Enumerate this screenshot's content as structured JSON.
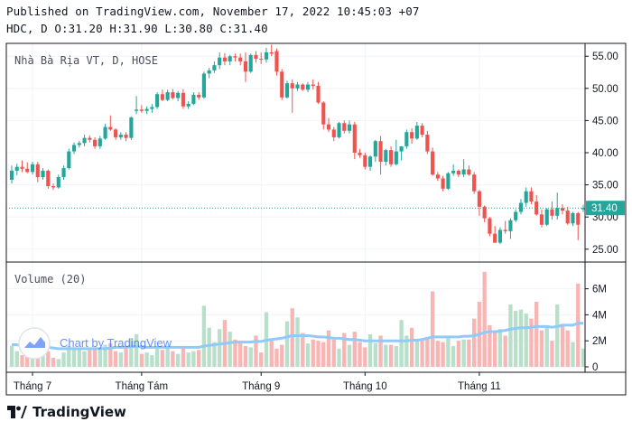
{
  "header": {
    "published": "Published on TradingView.com, November 17, 2022 10:45:03 +07",
    "ohlc": "HDC, D O:31.20 H:31.90 L:30.80 C:31.40"
  },
  "watermark": {
    "text": "Chart by TradingView"
  },
  "brand": {
    "text": "TradingView"
  },
  "colors": {
    "up": "#26a69a",
    "down": "#ef5350",
    "vol_up": "#b7dfc9",
    "vol_down": "#f7b5b4",
    "ma": "#90caf9",
    "last": "#26a69a"
  },
  "chart_data": [
    {
      "type": "candlestick",
      "title": "Nhà Bà Rịa VT, D, HOSE",
      "y_ticks": [
        25,
        30,
        35,
        40,
        45,
        50,
        55
      ],
      "y_tick_labels": [
        "25.00",
        "30.00",
        "35.00",
        "40.00",
        "45.00",
        "50.00",
        "55.00"
      ],
      "ylim": [
        23,
        57
      ],
      "x_tick_labels": [
        "Tháng 7",
        "Tháng Tám",
        "Tháng 9",
        "Tháng 10",
        "Tháng 11"
      ],
      "x_tick_index": [
        4,
        25,
        48,
        68,
        90
      ],
      "last_price_label": "31.40",
      "last_price": 31.4,
      "grid": true,
      "candles": [
        [
          35.8,
          38.0,
          35.2,
          37.2
        ],
        [
          37.2,
          38.3,
          36.5,
          37.8
        ],
        [
          37.8,
          38.8,
          37.0,
          37.5
        ],
        [
          37.5,
          38.5,
          36.8,
          37.0
        ],
        [
          37.0,
          38.6,
          36.6,
          38.2
        ],
        [
          38.2,
          38.6,
          35.4,
          36.2
        ],
        [
          36.2,
          37.6,
          35.8,
          37.2
        ],
        [
          37.2,
          37.4,
          34.4,
          34.8
        ],
        [
          34.8,
          35.2,
          34.2,
          34.6
        ],
        [
          34.6,
          36.6,
          34.4,
          36.2
        ],
        [
          36.2,
          38.0,
          35.8,
          37.6
        ],
        [
          37.6,
          40.6,
          37.4,
          40.2
        ],
        [
          40.2,
          41.6,
          39.8,
          41.2
        ],
        [
          41.2,
          41.8,
          40.8,
          41.5
        ],
        [
          41.5,
          42.8,
          41.0,
          42.3
        ],
        [
          42.3,
          42.7,
          41.6,
          42.0
        ],
        [
          42.0,
          42.4,
          40.6,
          41.0
        ],
        [
          41.0,
          42.6,
          40.6,
          42.2
        ],
        [
          42.2,
          44.5,
          42.0,
          44.0
        ],
        [
          44.0,
          45.8,
          43.4,
          43.6
        ],
        [
          43.6,
          43.8,
          42.0,
          42.4
        ],
        [
          42.4,
          43.2,
          42.0,
          42.8
        ],
        [
          42.8,
          43.2,
          41.8,
          42.3
        ],
        [
          42.3,
          45.6,
          42.0,
          45.5
        ],
        [
          46.5,
          48.8,
          46.0,
          46.7
        ],
        [
          46.7,
          47.4,
          46.2,
          46.5
        ],
        [
          46.5,
          47.2,
          46.0,
          46.8
        ],
        [
          46.8,
          47.6,
          46.2,
          47.1
        ],
        [
          47.1,
          49.4,
          46.8,
          49.1
        ],
        [
          49.1,
          49.8,
          48.0,
          48.2
        ],
        [
          48.2,
          49.8,
          48.0,
          49.4
        ],
        [
          49.4,
          49.9,
          48.3,
          48.5
        ],
        [
          48.5,
          49.6,
          48.0,
          49.3
        ],
        [
          49.3,
          49.9,
          46.8,
          47.2
        ],
        [
          47.2,
          48.0,
          46.8,
          47.6
        ],
        [
          47.6,
          49.4,
          47.4,
          49.0
        ],
        [
          49.0,
          49.4,
          48.2,
          48.6
        ],
        [
          48.6,
          52.6,
          48.4,
          52.3
        ],
        [
          52.3,
          53.2,
          51.6,
          52.8
        ],
        [
          52.8,
          54.2,
          52.4,
          53.6
        ],
        [
          53.6,
          55.6,
          53.0,
          54.8
        ],
        [
          54.8,
          55.5,
          53.6,
          54.2
        ],
        [
          54.2,
          55.2,
          53.6,
          55.0
        ],
        [
          55.0,
          55.4,
          54.2,
          54.8
        ],
        [
          54.8,
          55.4,
          53.6,
          54.2
        ],
        [
          54.2,
          55.6,
          51.0,
          52.6
        ],
        [
          52.6,
          55.4,
          52.4,
          55.2
        ],
        [
          55.2,
          55.8,
          54.0,
          54.6
        ],
        [
          54.6,
          55.6,
          53.8,
          54.5
        ],
        [
          54.5,
          56.3,
          54.0,
          55.6
        ],
        [
          55.6,
          56.8,
          55.0,
          55.4
        ],
        [
          55.8,
          56.2,
          52.0,
          52.6
        ],
        [
          52.6,
          53.0,
          48.2,
          48.6
        ],
        [
          48.6,
          51.2,
          48.4,
          50.8
        ],
        [
          50.8,
          51.4,
          46.2,
          50.0
        ],
        [
          50.0,
          51.0,
          49.6,
          50.6
        ],
        [
          50.6,
          50.8,
          49.6,
          49.8
        ],
        [
          49.8,
          51.0,
          49.4,
          50.6
        ],
        [
          50.6,
          51.4,
          49.8,
          50.4
        ],
        [
          50.4,
          51.0,
          47.6,
          47.8
        ],
        [
          47.8,
          48.0,
          43.6,
          44.4
        ],
        [
          44.4,
          45.4,
          43.2,
          43.6
        ],
        [
          43.6,
          44.0,
          41.8,
          42.4
        ],
        [
          42.4,
          44.8,
          42.2,
          44.6
        ],
        [
          44.6,
          45.0,
          43.0,
          43.4
        ],
        [
          43.4,
          45.0,
          43.0,
          44.4
        ],
        [
          44.4,
          44.8,
          39.0,
          40.0
        ],
        [
          40.0,
          40.6,
          39.2,
          39.6
        ],
        [
          39.6,
          40.0,
          37.4,
          37.8
        ],
        [
          37.8,
          39.6,
          37.2,
          39.4
        ],
        [
          39.4,
          42.0,
          38.6,
          41.8
        ],
        [
          41.8,
          42.6,
          36.6,
          38.6
        ],
        [
          38.6,
          40.6,
          38.0,
          40.4
        ],
        [
          40.4,
          41.0,
          37.8,
          38.2
        ],
        [
          38.2,
          42.0,
          38.0,
          40.2
        ],
        [
          40.2,
          41.0,
          38.8,
          41.0
        ],
        [
          41.0,
          43.6,
          40.6,
          43.2
        ],
        [
          43.2,
          43.8,
          41.4,
          42.2
        ],
        [
          42.2,
          44.8,
          42.0,
          44.2
        ],
        [
          44.2,
          44.6,
          42.4,
          42.8
        ],
        [
          42.8,
          43.4,
          39.8,
          40.2
        ],
        [
          40.2,
          40.8,
          36.4,
          36.6
        ],
        [
          36.6,
          37.0,
          35.6,
          36.0
        ],
        [
          36.0,
          36.4,
          34.0,
          34.4
        ],
        [
          34.4,
          37.0,
          34.2,
          36.8
        ],
        [
          36.8,
          38.2,
          36.4,
          37.2
        ],
        [
          37.2,
          37.4,
          36.2,
          36.6
        ],
        [
          36.6,
          39.0,
          36.2,
          37.4
        ],
        [
          37.4,
          38.0,
          36.4,
          36.6
        ],
        [
          36.6,
          37.0,
          33.6,
          34.0
        ],
        [
          34.0,
          34.2,
          30.2,
          31.6
        ],
        [
          31.6,
          31.8,
          29.2,
          29.8
        ],
        [
          29.8,
          30.0,
          27.0,
          27.4
        ],
        [
          27.4,
          28.6,
          26.0,
          26.0
        ],
        [
          26.0,
          28.4,
          25.8,
          28.0
        ],
        [
          28.0,
          29.4,
          27.4,
          27.8
        ],
        [
          27.8,
          29.8,
          26.6,
          29.5
        ],
        [
          29.5,
          31.2,
          29.2,
          30.8
        ],
        [
          30.8,
          32.8,
          30.4,
          32.2
        ],
        [
          32.2,
          34.6,
          31.6,
          34.0
        ],
        [
          34.0,
          34.6,
          32.0,
          32.4
        ],
        [
          32.4,
          33.4,
          30.2,
          30.4
        ],
        [
          30.4,
          31.2,
          28.4,
          28.8
        ],
        [
          28.8,
          31.4,
          28.6,
          31.2
        ],
        [
          31.2,
          32.4,
          29.6,
          30.2
        ],
        [
          30.2,
          33.8,
          29.6,
          31.4
        ],
        [
          31.4,
          32.0,
          30.4,
          31.0
        ],
        [
          31.0,
          31.6,
          28.8,
          29.0
        ],
        [
          29.0,
          30.8,
          28.6,
          30.6
        ],
        [
          30.6,
          30.8,
          26.4,
          28.8
        ],
        [
          31.2,
          31.9,
          30.8,
          31.4
        ]
      ]
    },
    {
      "type": "bar",
      "title": "Volume (20)",
      "y_ticks": [
        0,
        2,
        4,
        6
      ],
      "y_tick_labels": [
        "0",
        "2M",
        "4M",
        "6M"
      ],
      "ylim": [
        0,
        7.5
      ],
      "volumes": [
        1.6,
        1.2,
        0.9,
        0.8,
        1.0,
        1.4,
        0.9,
        1.2,
        0.7,
        0.6,
        1.1,
        1.6,
        1.5,
        1.4,
        1.2,
        1.3,
        1.5,
        1.3,
        1.7,
        1.8,
        1.2,
        1.1,
        1.6,
        2.2,
        2.5,
        1.0,
        1.1,
        0.9,
        1.4,
        1.3,
        1.5,
        1.2,
        1.0,
        1.6,
        1.1,
        1.2,
        1.3,
        4.7,
        3.0,
        1.9,
        2.9,
        3.6,
        2.7,
        2.1,
        1.9,
        1.6,
        1.5,
        2.4,
        1.1,
        4.2,
        2.0,
        1.4,
        1.7,
        3.5,
        4.5,
        3.8,
        2.6,
        1.8,
        2.1,
        2.0,
        1.9,
        2.8,
        2.1,
        1.4,
        2.6,
        1.7,
        2.7,
        1.9,
        1.5,
        2.5,
        1.8,
        2.4,
        1.7,
        1.7,
        1.6,
        3.6,
        2.4,
        3.0,
        2.1,
        2.0,
        2.3,
        5.8,
        2.0,
        1.9,
        2.2,
        1.6,
        2.0,
        2.1,
        2.1,
        3.7,
        5.0,
        7.3,
        3.2,
        2.8,
        2.9,
        2.4,
        4.8,
        4.3,
        4.4,
        4.1,
        3.7,
        5.0,
        2.8,
        3.1,
        2.0,
        4.8,
        3.3,
        2.8,
        1.9,
        6.4,
        1.4
      ],
      "ma": [
        1.7,
        1.7,
        1.6,
        1.6,
        1.55,
        1.5,
        1.5,
        1.5,
        1.45,
        1.4,
        1.4,
        1.4,
        1.4,
        1.4,
        1.4,
        1.4,
        1.4,
        1.4,
        1.4,
        1.45,
        1.5,
        1.5,
        1.5,
        1.55,
        1.55,
        1.55,
        1.5,
        1.5,
        1.5,
        1.5,
        1.5,
        1.5,
        1.5,
        1.5,
        1.5,
        1.5,
        1.5,
        1.6,
        1.65,
        1.7,
        1.75,
        1.8,
        1.85,
        1.9,
        1.9,
        1.9,
        1.9,
        1.95,
        1.95,
        2.05,
        2.1,
        2.15,
        2.2,
        2.3,
        2.4,
        2.4,
        2.4,
        2.4,
        2.35,
        2.3,
        2.3,
        2.25,
        2.2,
        2.2,
        2.15,
        2.1,
        2.1,
        2.05,
        2.0,
        2.0,
        2.0,
        2.0,
        2.0,
        2.0,
        2.0,
        2.0,
        2.0,
        2.05,
        2.05,
        2.1,
        2.2,
        2.3,
        2.3,
        2.3,
        2.3,
        2.3,
        2.3,
        2.35,
        2.35,
        2.4,
        2.5,
        2.65,
        2.7,
        2.7,
        2.75,
        2.8,
        2.9,
        2.95,
        3.0,
        3.0,
        3.05,
        3.1,
        3.1,
        3.1,
        3.05,
        3.1,
        3.2,
        3.2,
        3.2,
        3.35,
        3.35
      ]
    }
  ]
}
